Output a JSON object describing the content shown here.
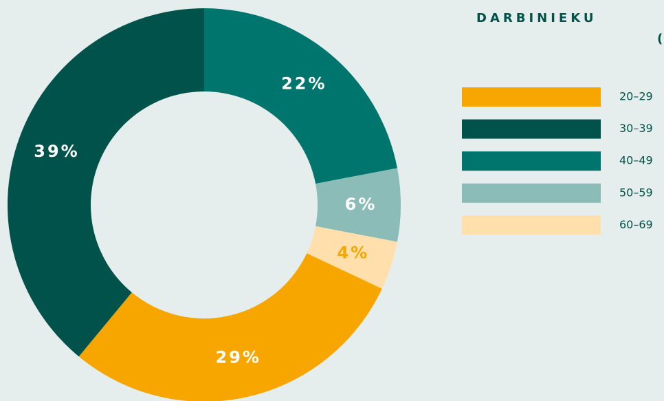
{
  "chart_data": {
    "type": "donut",
    "title": "DARBINIEKU",
    "subtitle": "(",
    "categories": [
      "20–29",
      "30–39",
      "40–49",
      "50–59",
      "60–69"
    ],
    "values": [
      29,
      39,
      22,
      6,
      4
    ],
    "value_labels": [
      "29%",
      "39%",
      "22%",
      "6%",
      "4%"
    ],
    "colors": [
      "#f7a600",
      "#00524a",
      "#00756e",
      "#8bbcb8",
      "#ffe0ad"
    ],
    "label_colors": [
      "#ffffff",
      "#ffffff",
      "#ffffff",
      "#ffffff",
      "#f7a600"
    ]
  }
}
